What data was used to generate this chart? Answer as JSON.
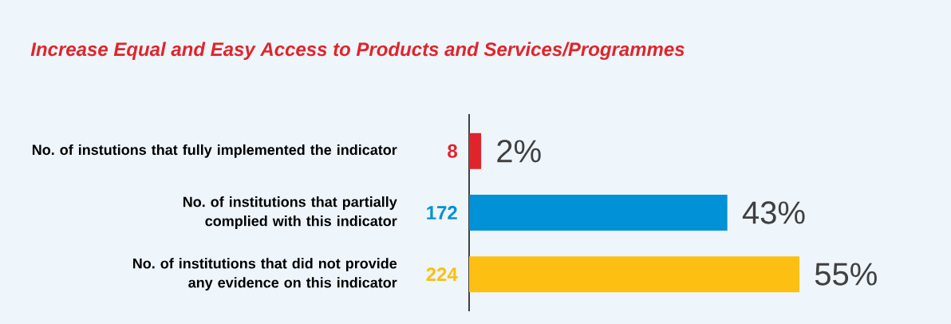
{
  "chart_data": {
    "type": "bar",
    "orientation": "horizontal",
    "title": "Increase Equal and Easy Access to Products and Services/Programmes",
    "categories": [
      "No. of instutions that fully implemented the indicator",
      "No. of institutions that partially complied with this indicator",
      "No. of institutions that did not provide any evidence on this indicator"
    ],
    "values": [
      2,
      43,
      55
    ],
    "colors": [
      "#e0242b",
      "#0091d6",
      "#fcbf12"
    ],
    "value_labels": [
      "2%",
      "43%",
      "55%"
    ],
    "annotations": [
      "8",
      "172",
      "224"
    ]
  }
}
